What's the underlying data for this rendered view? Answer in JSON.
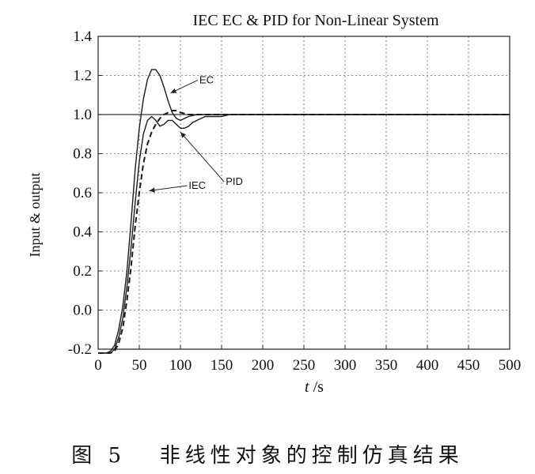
{
  "chart_data": {
    "type": "line",
    "title": "IEC EC & PID for Non-Linear System",
    "xlabel_italic": "t",
    "xlabel_unit": " /s",
    "ylabel": "Input & output",
    "xlim": [
      0,
      500
    ],
    "ylim": [
      -0.2,
      1.4
    ],
    "xticks": [
      0,
      50,
      100,
      150,
      200,
      250,
      300,
      350,
      400,
      450,
      500
    ],
    "xtick_labels": [
      "0",
      "50",
      "100",
      "150",
      "200",
      "250",
      "300",
      "350",
      "400",
      "450",
      "500"
    ],
    "yticks": [
      -0.2,
      0.0,
      0.2,
      0.4,
      0.6,
      0.8,
      1.0,
      1.2,
      1.4
    ],
    "ytick_labels": [
      "-0.2",
      "0.0",
      "0.2",
      "0.4",
      "0.6",
      "0.8",
      "1.0",
      "1.2",
      "1.4"
    ],
    "grid": true,
    "series": [
      {
        "name": "EC",
        "style": "solid",
        "x": [
          0,
          10,
          15,
          20,
          25,
          30,
          35,
          40,
          45,
          50,
          55,
          60,
          65,
          70,
          75,
          80,
          85,
          90,
          95,
          100,
          105,
          110,
          120,
          130,
          140,
          150,
          175,
          200,
          300,
          400,
          500
        ],
        "y": [
          -0.22,
          -0.22,
          -0.21,
          -0.18,
          -0.1,
          0.02,
          0.2,
          0.45,
          0.72,
          0.93,
          1.08,
          1.18,
          1.23,
          1.23,
          1.2,
          1.14,
          1.07,
          1.01,
          0.98,
          0.97,
          0.98,
          0.99,
          1.0,
          1.0,
          1.0,
          1.0,
          1.0,
          1.0,
          1.0,
          1.0,
          1.0
        ]
      },
      {
        "name": "PID",
        "style": "solid",
        "x": [
          0,
          10,
          15,
          20,
          25,
          30,
          35,
          40,
          45,
          50,
          55,
          60,
          65,
          70,
          75,
          80,
          85,
          90,
          95,
          100,
          105,
          110,
          115,
          120,
          130,
          140,
          150,
          160,
          175,
          200,
          300,
          400,
          500
        ],
        "y": [
          -0.22,
          -0.22,
          -0.22,
          -0.2,
          -0.14,
          -0.04,
          0.12,
          0.32,
          0.55,
          0.76,
          0.9,
          0.97,
          0.99,
          0.97,
          0.94,
          0.95,
          0.97,
          0.97,
          0.95,
          0.93,
          0.93,
          0.94,
          0.96,
          0.97,
          0.99,
          0.99,
          0.99,
          1.0,
          1.0,
          1.0,
          1.0,
          1.0,
          1.0
        ]
      },
      {
        "name": "IEC",
        "style": "dashed",
        "x": [
          0,
          10,
          15,
          20,
          25,
          30,
          35,
          40,
          45,
          50,
          55,
          60,
          65,
          70,
          75,
          80,
          85,
          90,
          95,
          100,
          110,
          120,
          130,
          150,
          175,
          200,
          300,
          400,
          500
        ],
        "y": [
          -0.22,
          -0.22,
          -0.22,
          -0.21,
          -0.17,
          -0.09,
          0.05,
          0.22,
          0.43,
          0.6,
          0.75,
          0.85,
          0.91,
          0.95,
          0.98,
          1.0,
          1.01,
          1.02,
          1.02,
          1.01,
          1.0,
          1.0,
          1.0,
          1.0,
          1.0,
          1.0,
          1.0,
          1.0,
          1.0
        ]
      }
    ],
    "reference_line": {
      "y": 1.0
    },
    "annotations": [
      {
        "text": "EC",
        "x": 123,
        "y": 1.16,
        "arrow_to": [
          88,
          1.11
        ]
      },
      {
        "text": "PID",
        "x": 155,
        "y": 0.64,
        "arrow_to": [
          100,
          0.91
        ]
      },
      {
        "text": "IEC",
        "x": 110,
        "y": 0.62,
        "arrow_to": [
          62,
          0.61
        ]
      }
    ],
    "caption": "图 5   非线性对象的控制仿真结果"
  }
}
